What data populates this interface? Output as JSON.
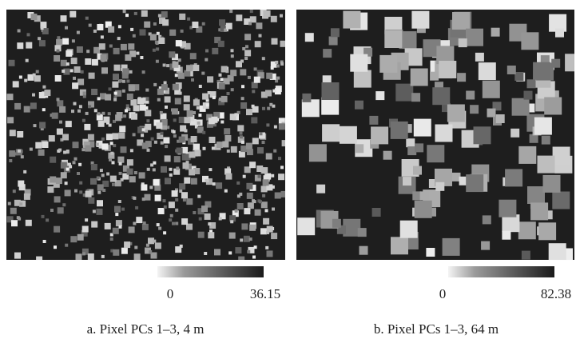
{
  "panels": [
    {
      "caption": "a. Pixel PCs 1–3, 4 m",
      "colorbar": {
        "min": 0,
        "max": 36.15
      }
    },
    {
      "caption": "b. Pixel PCs 1–3, 64 m",
      "colorbar": {
        "min": 0,
        "max": 82.38
      }
    }
  ]
}
